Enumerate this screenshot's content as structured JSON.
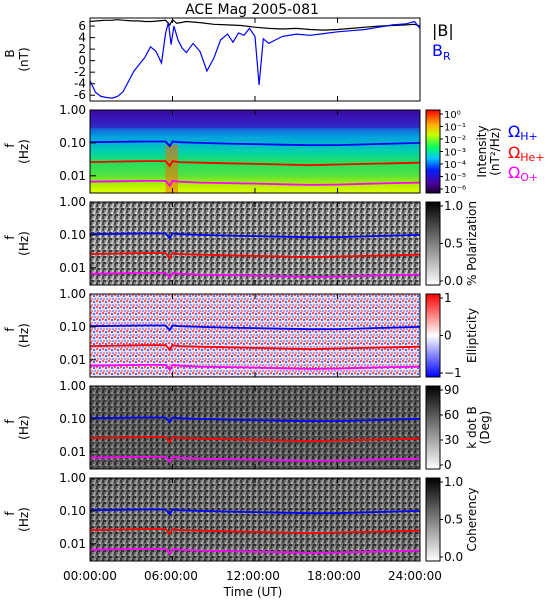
{
  "title": "ACE Mag 2005-081",
  "x_axis": {
    "label": "Time (UT)",
    "ticks": [
      "00:00:00",
      "06:00:00",
      "12:00:00",
      "18:00:00",
      "24:00:00"
    ],
    "tick_hours": [
      0,
      6,
      12,
      18,
      24
    ],
    "range_hours": [
      0,
      24
    ]
  },
  "legend_top": {
    "b_total": "|B|",
    "b_r": "B",
    "b_r_sub": "R",
    "b_total_color": "#000000",
    "b_r_color": "#0000ff"
  },
  "gyro_legend": {
    "omega": "Ω",
    "items": [
      {
        "sub": "H+",
        "color": "#0000ff"
      },
      {
        "sub": "He+",
        "color": "#ff0000"
      },
      {
        "sub": "O+",
        "color": "#ff00ff"
      }
    ]
  },
  "panels": [
    {
      "id": "b-field",
      "ylabel": "B",
      "yunit": "(nT)",
      "ylim": [
        -7,
        7.4
      ],
      "yticks": [
        "6",
        "4",
        "2",
        "0",
        "-2",
        "-4",
        "-6"
      ],
      "ytick_values": [
        6,
        4,
        2,
        0,
        -2,
        -4,
        -6
      ]
    },
    {
      "id": "intensity",
      "ylabel": "f",
      "yunit": "(Hz)",
      "yticks": [
        "1.00",
        "0.10",
        "0.01"
      ],
      "colorbar": {
        "type": "rainbow",
        "label": "Intensity",
        "unit": "(nT²/Hz)",
        "ticks": [
          "10⁰",
          "10⁻¹",
          "10⁻²",
          "10⁻³",
          "10⁻⁴",
          "10⁻⁵",
          "10⁻⁶"
        ]
      }
    },
    {
      "id": "polarization",
      "ylabel": "f",
      "yunit": "(Hz)",
      "yticks": [
        "1.00",
        "0.10",
        "0.01"
      ],
      "colorbar": {
        "type": "gray",
        "label": "% Polarization",
        "unit": "",
        "ticks": [
          "1.0",
          "0.5",
          "0.0"
        ]
      }
    },
    {
      "id": "ellipticity",
      "ylabel": "f",
      "yunit": "(Hz)",
      "yticks": [
        "1.00",
        "0.10",
        "0.01"
      ],
      "colorbar": {
        "type": "bwr",
        "label": "Ellipticity",
        "unit": "",
        "ticks": [
          "1",
          "0",
          "−1"
        ]
      }
    },
    {
      "id": "k-dot-b",
      "ylabel": "f",
      "yunit": "(Hz)",
      "yticks": [
        "1.00",
        "0.10",
        "0.01"
      ],
      "colorbar": {
        "type": "gray",
        "label": "k dot B",
        "unit": "(Deg)",
        "ticks": [
          "90",
          "60",
          "30",
          "0"
        ]
      }
    },
    {
      "id": "coherency",
      "ylabel": "f",
      "yunit": "(Hz)",
      "yticks": [
        "1.00",
        "0.10",
        "0.01"
      ],
      "colorbar": {
        "type": "gray",
        "label": "Coherency",
        "unit": "",
        "ticks": [
          "1.0",
          "0.5",
          "0.0"
        ]
      }
    }
  ],
  "chart_data": [
    {
      "type": "line",
      "panel": "b-field",
      "title": "ACE Mag 2005-081",
      "xlabel": "Time (UT)",
      "ylabel": "B (nT)",
      "xlim": [
        0,
        24
      ],
      "ylim": [
        -7,
        7.4
      ],
      "grid": false,
      "legend": "top-right",
      "series": [
        {
          "name": "|B|",
          "color": "#000000",
          "x": [
            0,
            0.5,
            1,
            1.5,
            2,
            2.5,
            3,
            3.5,
            4,
            4.5,
            5,
            5.5,
            5.8,
            6,
            6.3,
            6.6,
            7,
            8,
            9,
            10,
            11,
            12,
            13,
            14,
            15,
            16,
            17,
            18,
            19,
            20,
            21,
            22,
            23,
            23.6,
            24
          ],
          "y": [
            6.8,
            6.9,
            7.0,
            7.0,
            7.1,
            7.0,
            6.9,
            6.9,
            6.8,
            6.8,
            6.9,
            7.0,
            6.2,
            7.1,
            6.5,
            6.6,
            6.8,
            6.6,
            6.3,
            6.2,
            6.1,
            5.8,
            5.6,
            5.5,
            5.6,
            5.4,
            5.3,
            5.4,
            5.6,
            5.8,
            6.0,
            6.1,
            6.2,
            6.3,
            6.0
          ]
        },
        {
          "name": "BR",
          "color": "#0000ff",
          "x": [
            0,
            0.4,
            0.8,
            1.2,
            1.6,
            2,
            2.4,
            2.8,
            3.2,
            3.6,
            4,
            4.4,
            4.8,
            5.2,
            5.5,
            5.7,
            5.9,
            6.1,
            6.4,
            6.7,
            7,
            7.5,
            8,
            8.5,
            9,
            9.5,
            10,
            10.4,
            10.8,
            11.2,
            11.6,
            12,
            12.3,
            12.6,
            13,
            13.5,
            14,
            15,
            16,
            17,
            18,
            19,
            20,
            21,
            22,
            23,
            23.6,
            24
          ],
          "y": [
            -3.5,
            -5.5,
            -6.2,
            -6.4,
            -6.5,
            -6.2,
            -5.4,
            -3.6,
            -1.8,
            -0.6,
            0.6,
            2.4,
            1.6,
            -0.4,
            4.8,
            6.6,
            2.8,
            6.0,
            3.6,
            2.2,
            1.4,
            3.0,
            1.6,
            -1.8,
            0.4,
            3.6,
            4.6,
            3.2,
            4.8,
            4.4,
            5.6,
            4.2,
            -4.2,
            3.8,
            3.0,
            3.6,
            4.2,
            4.6,
            4.4,
            4.7,
            5.0,
            5.2,
            5.4,
            5.8,
            6.2,
            6.4,
            6.8,
            5.6
          ]
        }
      ]
    },
    {
      "type": "heatmap",
      "panel": "spectral-panels",
      "xlabel": "Time (UT)",
      "ylabel": "f (Hz)",
      "yscale": "log",
      "ylim": [
        0.003,
        1.0
      ],
      "note_series": "gyrofrequency overlays shared by all five spectral panels",
      "series": [
        {
          "name": "ΩH+",
          "color": "#0000ff",
          "x": [
            0,
            2,
            4,
            5.5,
            5.8,
            6,
            6.5,
            8,
            10,
            12,
            14,
            16,
            18,
            20,
            22,
            24
          ],
          "y": [
            0.105,
            0.108,
            0.11,
            0.11,
            0.08,
            0.11,
            0.105,
            0.1,
            0.095,
            0.092,
            0.088,
            0.085,
            0.086,
            0.09,
            0.095,
            0.1
          ]
        },
        {
          "name": "ΩHe+",
          "color": "#ff0000",
          "x": [
            0,
            2,
            4,
            5.5,
            5.8,
            6,
            6.5,
            8,
            10,
            12,
            14,
            16,
            18,
            20,
            22,
            24
          ],
          "y": [
            0.026,
            0.027,
            0.028,
            0.028,
            0.02,
            0.028,
            0.026,
            0.025,
            0.024,
            0.023,
            0.022,
            0.021,
            0.022,
            0.023,
            0.024,
            0.025
          ]
        },
        {
          "name": "ΩO+",
          "color": "#ff00ff",
          "x": [
            0,
            2,
            4,
            5.5,
            5.8,
            6,
            6.5,
            8,
            10,
            12,
            14,
            16,
            18,
            20,
            22,
            24
          ],
          "y": [
            0.0066,
            0.0068,
            0.007,
            0.007,
            0.005,
            0.007,
            0.0066,
            0.0062,
            0.006,
            0.0058,
            0.0055,
            0.0053,
            0.0054,
            0.0057,
            0.006,
            0.0062
          ]
        }
      ]
    }
  ]
}
